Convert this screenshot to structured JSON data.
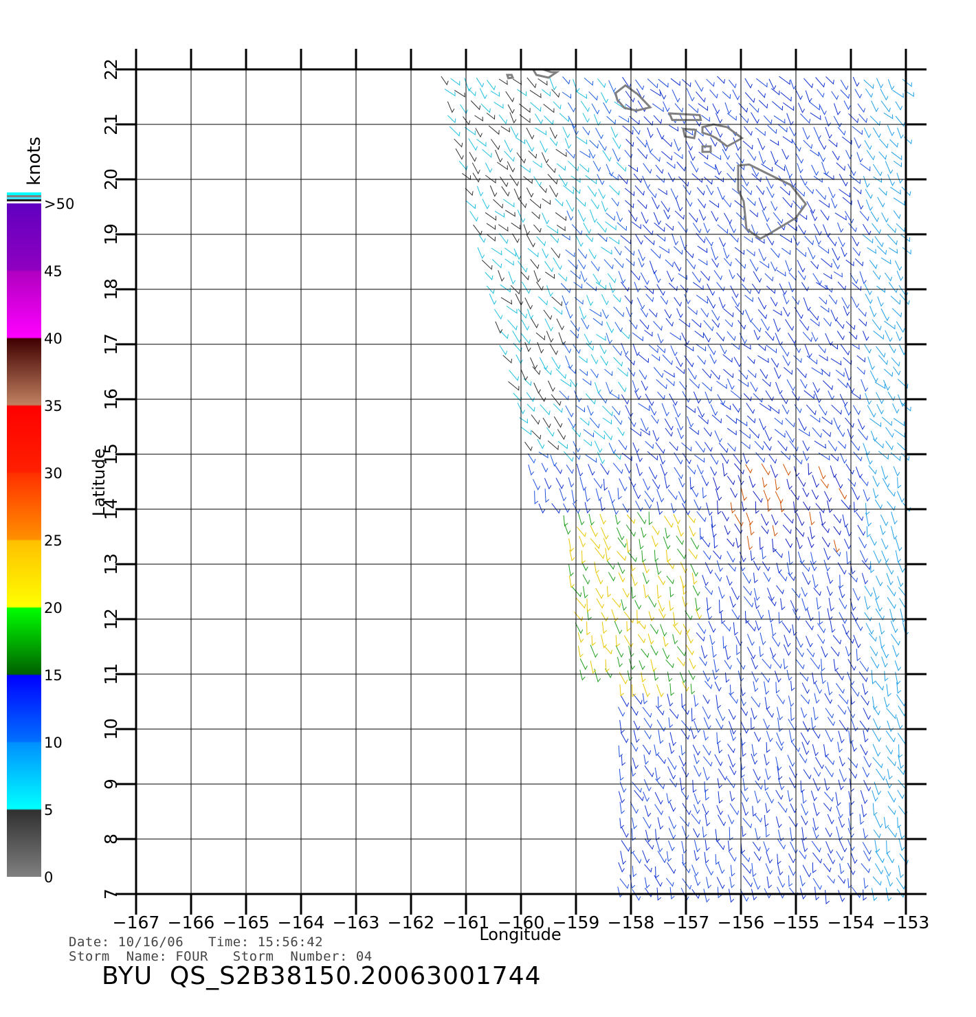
{
  "map": {
    "ylabel": "Latitude",
    "xlabel": "Longitude",
    "lon_range": [
      -167,
      -153
    ],
    "lat_range": [
      7,
      22
    ],
    "lon_ticks": [
      -167,
      -166,
      -165,
      -164,
      -163,
      -162,
      -161,
      -160,
      -159,
      -158,
      -157,
      -156,
      -155,
      -154,
      -153
    ],
    "lat_ticks": [
      7,
      8,
      9,
      10,
      11,
      12,
      13,
      14,
      15,
      16,
      17,
      18,
      19,
      20,
      21,
      22
    ],
    "lon_tick_labels": [
      "−167",
      "−166",
      "−165",
      "−164",
      "−163",
      "−162",
      "−161",
      "−160",
      "−159",
      "−158",
      "−157",
      "−156",
      "−155",
      "−154",
      "−153"
    ],
    "lat_tick_labels": [
      "7",
      "8",
      "9",
      "10",
      "11",
      "12",
      "13",
      "14",
      "15",
      "16",
      "17",
      "18",
      "19",
      "20",
      "21",
      "22"
    ],
    "grid": true,
    "coastline_color": "#808080",
    "swath_lon_west_edge_approx": -161.5
  },
  "colorbar": {
    "unit": "knots",
    "labels": [
      "0",
      "5",
      "10",
      "15",
      "20",
      "25",
      "30",
      "35",
      "40",
      "45",
      ">50"
    ],
    "colors": [
      "#808080",
      "#00ffff",
      "#0000ff",
      "#00ff00",
      "#ffff00",
      "#ff8000",
      "#ff0000",
      "#c08060",
      "#ff00ff",
      "#6000c0",
      "#6000c0"
    ]
  },
  "footer": {
    "date_line": "Date: 10/16/06   Time: 15:56:42",
    "storm_line": "Storm  Name: FOUR   Storm  Number: 04",
    "product_id": "BYU  QS_S2B38150.20063001744"
  }
}
